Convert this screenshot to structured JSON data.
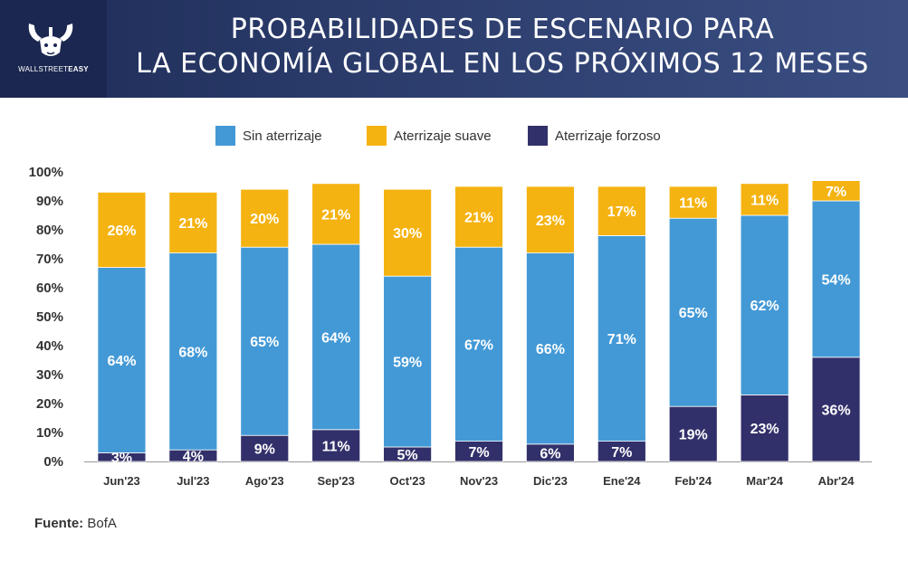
{
  "header": {
    "title_line1": "PROBABILIDADES DE ESCENARIO PARA",
    "title_line2": "LA ECONOMÍA GLOBAL EN LOS PRÓXIMOS 12 MESES",
    "logo_text_light": "WALLSTREET",
    "logo_text_bold": "EASY",
    "logo_icon": "bull-hands-icon"
  },
  "colors": {
    "sin": "#4399d6",
    "suave": "#f5b311",
    "forzoso": "#32306a"
  },
  "chart_data": {
    "type": "bar",
    "stacked": true,
    "categories": [
      "Jun'23",
      "Jul'23",
      "Ago'23",
      "Sep'23",
      "Oct'23",
      "Nov'23",
      "Dic'23",
      "Ene'24",
      "Feb'24",
      "Mar'24",
      "Abr'24"
    ],
    "series": [
      {
        "name": "Aterrizaje forzoso",
        "key": "forzoso",
        "values": [
          3,
          4,
          9,
          11,
          5,
          7,
          6,
          7,
          19,
          23,
          36
        ]
      },
      {
        "name": "Sin aterrizaje",
        "key": "sin",
        "values": [
          64,
          68,
          65,
          64,
          59,
          67,
          66,
          71,
          65,
          62,
          54
        ]
      },
      {
        "name": "Aterrizaje suave",
        "key": "suave",
        "values": [
          26,
          21,
          20,
          21,
          30,
          21,
          23,
          17,
          11,
          11,
          7
        ]
      }
    ],
    "legend_order": [
      "sin",
      "suave",
      "forzoso"
    ],
    "ylim": [
      0,
      100
    ],
    "yticks": [
      "0%",
      "10%",
      "20%",
      "30%",
      "40%",
      "50%",
      "60%",
      "70%",
      "80%",
      "90%",
      "100%"
    ],
    "grid": false,
    "legend_position": "top"
  },
  "source": {
    "label": "Fuente:",
    "value": "BofA"
  }
}
